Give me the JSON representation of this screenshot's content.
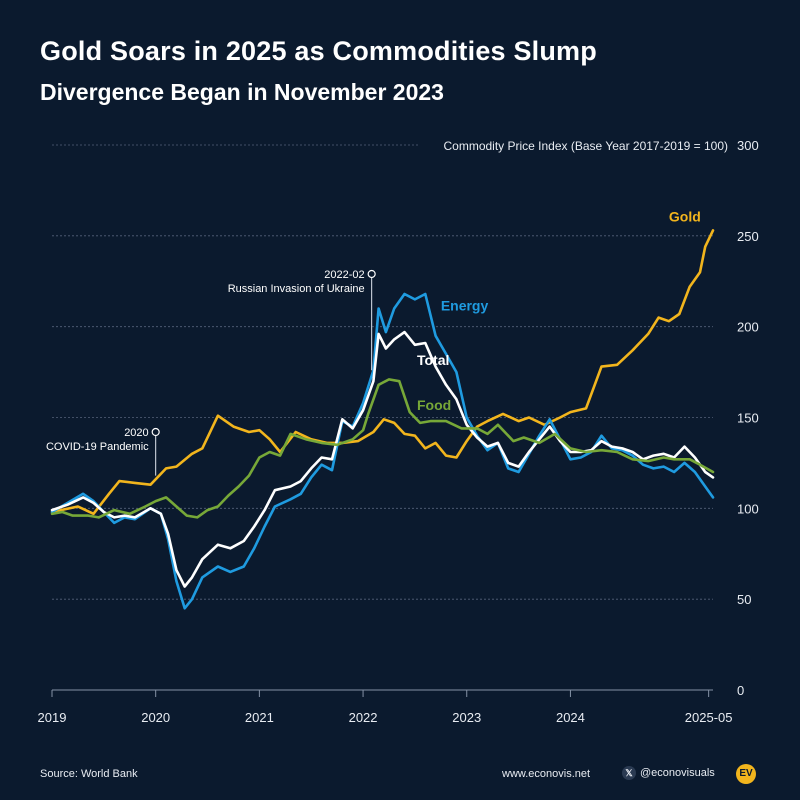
{
  "header": {
    "title": "Gold Soars in 2025 as Commodities Slump",
    "subtitle": "Divergence Began in November 2023"
  },
  "footer": {
    "source": "Source: World Bank",
    "site": "www.econovis.net",
    "handle": "@econovisuals",
    "x_icon": "x-logo-icon",
    "logo_text": "EV"
  },
  "colors": {
    "background": "#0b1a2e",
    "gold": "#f2b51d",
    "energy": "#1f9be0",
    "total": "#ffffff",
    "food": "#77a838",
    "grid": "#55627a"
  },
  "chart_data": {
    "type": "line",
    "ylabel": "Commodity Price Index (Base Year 2017-2019 = 100)",
    "ylim": [
      0,
      300
    ],
    "yticks": [
      0,
      50,
      100,
      150,
      200,
      250,
      300
    ],
    "xlim": [
      2019.0,
      2025.375
    ],
    "xticks": [
      {
        "value": 2019,
        "label": "2019"
      },
      {
        "value": 2020,
        "label": "2020"
      },
      {
        "value": 2021,
        "label": "2021"
      },
      {
        "value": 2022,
        "label": "2022"
      },
      {
        "value": 2023,
        "label": "2023"
      },
      {
        "value": 2024,
        "label": "2024"
      },
      {
        "value": 2025.333,
        "label": "2025-05"
      }
    ],
    "grid": "horizontal dashed",
    "annotations": [
      {
        "x": 2020.0,
        "y": 142,
        "date": "2020",
        "text": "COVID-19 Pandemic"
      },
      {
        "x": 2022.083,
        "y": 229,
        "date": "2022-02",
        "text": "Russian Invasion of Ukraine"
      }
    ],
    "series": [
      {
        "name": "Gold",
        "color": "#f2b51d",
        "label_at": [
          2024.95,
          258
        ],
        "points": [
          [
            2019.0,
            98
          ],
          [
            2019.25,
            101
          ],
          [
            2019.4,
            97
          ],
          [
            2019.55,
            108
          ],
          [
            2019.65,
            115
          ],
          [
            2019.8,
            114
          ],
          [
            2019.95,
            113
          ],
          [
            2020.1,
            122
          ],
          [
            2020.2,
            123
          ],
          [
            2020.35,
            130
          ],
          [
            2020.45,
            133
          ],
          [
            2020.6,
            151
          ],
          [
            2020.75,
            145
          ],
          [
            2020.9,
            142
          ],
          [
            2021.0,
            143
          ],
          [
            2021.1,
            138
          ],
          [
            2021.2,
            131
          ],
          [
            2021.35,
            142
          ],
          [
            2021.5,
            138
          ],
          [
            2021.65,
            136
          ],
          [
            2021.8,
            136
          ],
          [
            2021.95,
            137
          ],
          [
            2022.1,
            142
          ],
          [
            2022.2,
            149
          ],
          [
            2022.3,
            147
          ],
          [
            2022.4,
            141
          ],
          [
            2022.5,
            140
          ],
          [
            2022.6,
            133
          ],
          [
            2022.7,
            136
          ],
          [
            2022.8,
            129
          ],
          [
            2022.9,
            128
          ],
          [
            2023.0,
            137
          ],
          [
            2023.1,
            145
          ],
          [
            2023.2,
            148
          ],
          [
            2023.35,
            152
          ],
          [
            2023.5,
            148
          ],
          [
            2023.6,
            150
          ],
          [
            2023.75,
            146
          ],
          [
            2023.9,
            150
          ],
          [
            2024.0,
            153
          ],
          [
            2024.15,
            155
          ],
          [
            2024.3,
            178
          ],
          [
            2024.45,
            179
          ],
          [
            2024.6,
            187
          ],
          [
            2024.75,
            196
          ],
          [
            2024.85,
            205
          ],
          [
            2024.95,
            203
          ],
          [
            2025.05,
            207
          ],
          [
            2025.15,
            222
          ],
          [
            2025.25,
            230
          ],
          [
            2025.3,
            244
          ],
          [
            2025.375,
            253
          ]
        ]
      },
      {
        "name": "Energy",
        "color": "#1f9be0",
        "label_at": [
          2022.75,
          209
        ],
        "points": [
          [
            2019.0,
            98
          ],
          [
            2019.15,
            103
          ],
          [
            2019.3,
            108
          ],
          [
            2019.4,
            104
          ],
          [
            2019.5,
            98
          ],
          [
            2019.6,
            92
          ],
          [
            2019.7,
            95
          ],
          [
            2019.8,
            94
          ],
          [
            2019.95,
            100
          ],
          [
            2020.05,
            97
          ],
          [
            2020.12,
            83
          ],
          [
            2020.2,
            60
          ],
          [
            2020.28,
            45
          ],
          [
            2020.35,
            50
          ],
          [
            2020.45,
            62
          ],
          [
            2020.6,
            68
          ],
          [
            2020.72,
            65
          ],
          [
            2020.85,
            68
          ],
          [
            2020.95,
            78
          ],
          [
            2021.05,
            90
          ],
          [
            2021.15,
            101
          ],
          [
            2021.3,
            105
          ],
          [
            2021.4,
            108
          ],
          [
            2021.5,
            117
          ],
          [
            2021.6,
            124
          ],
          [
            2021.7,
            121
          ],
          [
            2021.8,
            148
          ],
          [
            2021.9,
            145
          ],
          [
            2022.0,
            158
          ],
          [
            2022.1,
            176
          ],
          [
            2022.15,
            210
          ],
          [
            2022.22,
            197
          ],
          [
            2022.3,
            210
          ],
          [
            2022.4,
            218
          ],
          [
            2022.5,
            215
          ],
          [
            2022.6,
            218
          ],
          [
            2022.7,
            195
          ],
          [
            2022.8,
            185
          ],
          [
            2022.9,
            175
          ],
          [
            2023.0,
            150
          ],
          [
            2023.1,
            140
          ],
          [
            2023.2,
            132
          ],
          [
            2023.3,
            136
          ],
          [
            2023.4,
            122
          ],
          [
            2023.5,
            120
          ],
          [
            2023.6,
            130
          ],
          [
            2023.7,
            140
          ],
          [
            2023.8,
            149
          ],
          [
            2023.9,
            138
          ],
          [
            2024.0,
            127
          ],
          [
            2024.1,
            128
          ],
          [
            2024.2,
            131
          ],
          [
            2024.3,
            140
          ],
          [
            2024.4,
            133
          ],
          [
            2024.5,
            132
          ],
          [
            2024.6,
            129
          ],
          [
            2024.7,
            124
          ],
          [
            2024.8,
            122
          ],
          [
            2024.9,
            123
          ],
          [
            2025.0,
            120
          ],
          [
            2025.1,
            125
          ],
          [
            2025.2,
            120
          ],
          [
            2025.3,
            112
          ],
          [
            2025.375,
            106
          ]
        ]
      },
      {
        "name": "Total",
        "color": "#ffffff",
        "label_at": [
          2022.52,
          179
        ],
        "points": [
          [
            2019.0,
            99
          ],
          [
            2019.15,
            102
          ],
          [
            2019.3,
            106
          ],
          [
            2019.4,
            103
          ],
          [
            2019.5,
            98
          ],
          [
            2019.6,
            95
          ],
          [
            2019.7,
            96
          ],
          [
            2019.8,
            95
          ],
          [
            2019.95,
            100
          ],
          [
            2020.05,
            97
          ],
          [
            2020.12,
            86
          ],
          [
            2020.2,
            66
          ],
          [
            2020.28,
            57
          ],
          [
            2020.35,
            62
          ],
          [
            2020.45,
            72
          ],
          [
            2020.6,
            80
          ],
          [
            2020.72,
            78
          ],
          [
            2020.85,
            82
          ],
          [
            2020.95,
            90
          ],
          [
            2021.05,
            99
          ],
          [
            2021.15,
            110
          ],
          [
            2021.3,
            112
          ],
          [
            2021.4,
            115
          ],
          [
            2021.5,
            122
          ],
          [
            2021.6,
            128
          ],
          [
            2021.7,
            127
          ],
          [
            2021.8,
            149
          ],
          [
            2021.9,
            144
          ],
          [
            2022.0,
            154
          ],
          [
            2022.1,
            170
          ],
          [
            2022.15,
            196
          ],
          [
            2022.22,
            188
          ],
          [
            2022.3,
            193
          ],
          [
            2022.4,
            197
          ],
          [
            2022.5,
            190
          ],
          [
            2022.6,
            191
          ],
          [
            2022.7,
            178
          ],
          [
            2022.8,
            168
          ],
          [
            2022.9,
            160
          ],
          [
            2023.0,
            146
          ],
          [
            2023.1,
            139
          ],
          [
            2023.2,
            134
          ],
          [
            2023.3,
            136
          ],
          [
            2023.4,
            125
          ],
          [
            2023.5,
            123
          ],
          [
            2023.6,
            131
          ],
          [
            2023.7,
            138
          ],
          [
            2023.8,
            145
          ],
          [
            2023.9,
            137
          ],
          [
            2024.0,
            131
          ],
          [
            2024.1,
            131
          ],
          [
            2024.2,
            132
          ],
          [
            2024.3,
            137
          ],
          [
            2024.4,
            134
          ],
          [
            2024.5,
            133
          ],
          [
            2024.6,
            131
          ],
          [
            2024.7,
            127
          ],
          [
            2024.8,
            129
          ],
          [
            2024.9,
            130
          ],
          [
            2025.0,
            128
          ],
          [
            2025.1,
            134
          ],
          [
            2025.2,
            128
          ],
          [
            2025.3,
            120
          ],
          [
            2025.375,
            117
          ]
        ]
      },
      {
        "name": "Food",
        "color": "#77a838",
        "label_at": [
          2022.52,
          154
        ],
        "points": [
          [
            2019.0,
            97
          ],
          [
            2019.1,
            98
          ],
          [
            2019.2,
            96
          ],
          [
            2019.35,
            96
          ],
          [
            2019.45,
            95
          ],
          [
            2019.6,
            99
          ],
          [
            2019.75,
            97
          ],
          [
            2019.9,
            101
          ],
          [
            2020.0,
            104
          ],
          [
            2020.1,
            106
          ],
          [
            2020.2,
            101
          ],
          [
            2020.3,
            96
          ],
          [
            2020.4,
            95
          ],
          [
            2020.5,
            99
          ],
          [
            2020.6,
            101
          ],
          [
            2020.7,
            107
          ],
          [
            2020.8,
            112
          ],
          [
            2020.9,
            118
          ],
          [
            2021.0,
            128
          ],
          [
            2021.1,
            131
          ],
          [
            2021.2,
            129
          ],
          [
            2021.3,
            141
          ],
          [
            2021.45,
            138
          ],
          [
            2021.6,
            136
          ],
          [
            2021.75,
            135
          ],
          [
            2021.9,
            138
          ],
          [
            2022.0,
            143
          ],
          [
            2022.05,
            152
          ],
          [
            2022.15,
            168
          ],
          [
            2022.25,
            171
          ],
          [
            2022.35,
            170
          ],
          [
            2022.45,
            153
          ],
          [
            2022.55,
            147
          ],
          [
            2022.65,
            148
          ],
          [
            2022.8,
            148
          ],
          [
            2022.95,
            144
          ],
          [
            2023.1,
            144
          ],
          [
            2023.2,
            141
          ],
          [
            2023.3,
            146
          ],
          [
            2023.45,
            137
          ],
          [
            2023.55,
            139
          ],
          [
            2023.7,
            136
          ],
          [
            2023.85,
            141
          ],
          [
            2024.0,
            133
          ],
          [
            2024.15,
            131
          ],
          [
            2024.3,
            132
          ],
          [
            2024.45,
            131
          ],
          [
            2024.6,
            127
          ],
          [
            2024.75,
            126
          ],
          [
            2024.9,
            128
          ],
          [
            2025.0,
            127
          ],
          [
            2025.15,
            127
          ],
          [
            2025.25,
            124
          ],
          [
            2025.375,
            120
          ]
        ]
      }
    ]
  }
}
